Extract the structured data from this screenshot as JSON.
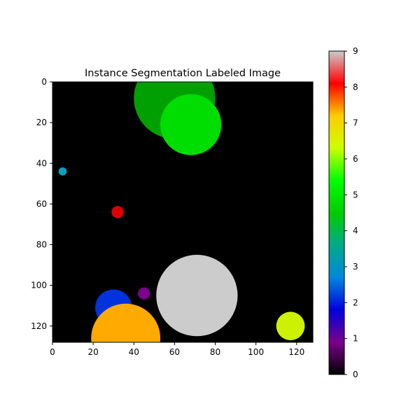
{
  "chart_data": {
    "type": "heatmap",
    "title": "Instance Segmentation Labeled Image",
    "xlabel": "",
    "ylabel": "",
    "image_size": [
      128,
      128
    ],
    "xlim": [
      0,
      128
    ],
    "ylim": [
      128,
      0
    ],
    "x_ticks": [
      0,
      20,
      40,
      60,
      80,
      100,
      120
    ],
    "y_ticks": [
      0,
      20,
      40,
      60,
      80,
      100,
      120
    ],
    "grid": false,
    "background_label": 0,
    "colormap": "nipy_spectral",
    "colorbar": {
      "range": [
        0,
        9
      ],
      "ticks": [
        0,
        1,
        2,
        3,
        4,
        5,
        6,
        7,
        8,
        9
      ],
      "stops": [
        "#000000",
        "#7a008a",
        "#0000dd",
        "#0088dd",
        "#00aa88",
        "#00cc00",
        "#00ff00",
        "#ccff00",
        "#ffcc00",
        "#ff0000",
        "#cccccc"
      ]
    },
    "instances": [
      {
        "label": 1,
        "cx": 45,
        "cy": 104,
        "r": 3,
        "color": "#7a008a"
      },
      {
        "label": 2,
        "cx": 30,
        "cy": 111,
        "r": 9,
        "color": "#0033dd"
      },
      {
        "label": 3,
        "cx": 5,
        "cy": 44,
        "r": 2,
        "color": "#0aa0c0"
      },
      {
        "label": 4,
        "cx": 60,
        "cy": 8,
        "r": 20,
        "color": "#00a000"
      },
      {
        "label": 5,
        "cx": 68,
        "cy": 21,
        "r": 15,
        "color": "#00dd00"
      },
      {
        "label": 6.5,
        "cx": 117,
        "cy": 120,
        "r": 7,
        "color": "#ccf200"
      },
      {
        "label": 7,
        "cx": 36,
        "cy": 126,
        "r": 17,
        "color": "#ffaa00"
      },
      {
        "label": 8,
        "cx": 32,
        "cy": 64,
        "r": 3,
        "color": "#dd0000"
      },
      {
        "label": 9,
        "cx": 71,
        "cy": 105,
        "r": 20,
        "color": "#cccccc"
      }
    ]
  }
}
